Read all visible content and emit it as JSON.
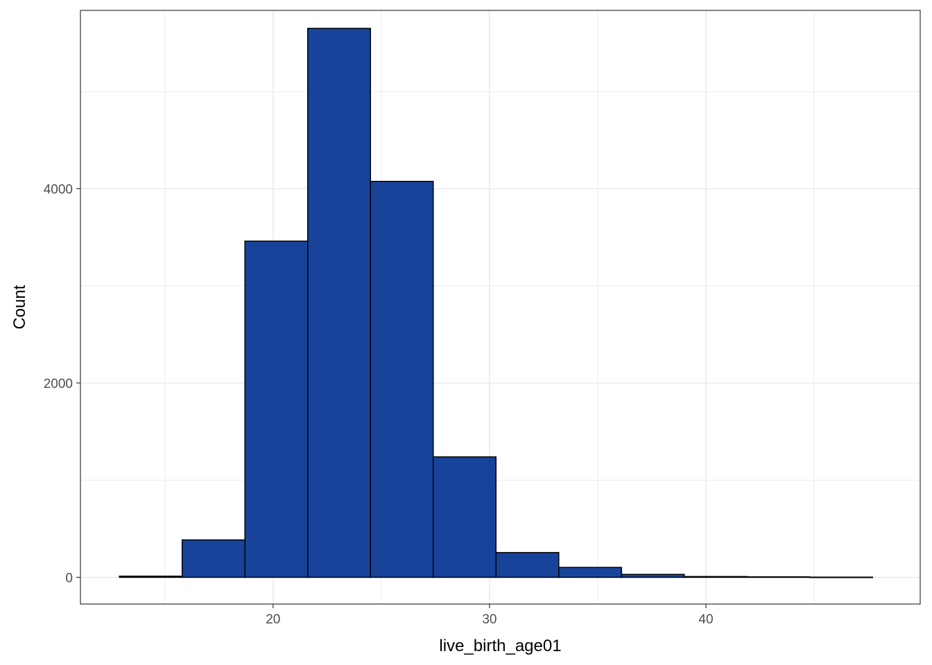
{
  "chart_data": {
    "type": "bar",
    "subtype": "histogram",
    "title": "",
    "xlabel": "live_birth_age01",
    "ylabel": "Count",
    "xlim": [
      11.1,
      49.9
    ],
    "ylim": [
      -275,
      5835
    ],
    "x_ticks": [
      20,
      30,
      40
    ],
    "y_ticks": [
      0,
      2000,
      4000
    ],
    "x_minor_ticks": [
      15,
      25,
      35,
      45
    ],
    "y_minor_ticks": [
      1000,
      3000,
      5000
    ],
    "grid": true,
    "legend": "none",
    "colors": {
      "fill": "#18439a",
      "outline": "#000000",
      "grid": "#ebebeb",
      "panel_border": "#333333"
    },
    "bins": [
      {
        "x0": 12.9,
        "x1": 15.8,
        "count": 12
      },
      {
        "x0": 15.8,
        "x1": 18.7,
        "count": 385
      },
      {
        "x0": 18.7,
        "x1": 21.6,
        "count": 3460
      },
      {
        "x0": 21.6,
        "x1": 24.5,
        "count": 5650
      },
      {
        "x0": 24.5,
        "x1": 27.4,
        "count": 4075
      },
      {
        "x0": 27.4,
        "x1": 30.3,
        "count": 1240
      },
      {
        "x0": 30.3,
        "x1": 33.2,
        "count": 255
      },
      {
        "x0": 33.2,
        "x1": 36.1,
        "count": 102
      },
      {
        "x0": 36.1,
        "x1": 39.0,
        "count": 30
      },
      {
        "x0": 39.0,
        "x1": 41.9,
        "count": 8
      },
      {
        "x0": 41.9,
        "x1": 44.8,
        "count": 5
      },
      {
        "x0": 44.8,
        "x1": 47.7,
        "count": 2
      }
    ]
  }
}
